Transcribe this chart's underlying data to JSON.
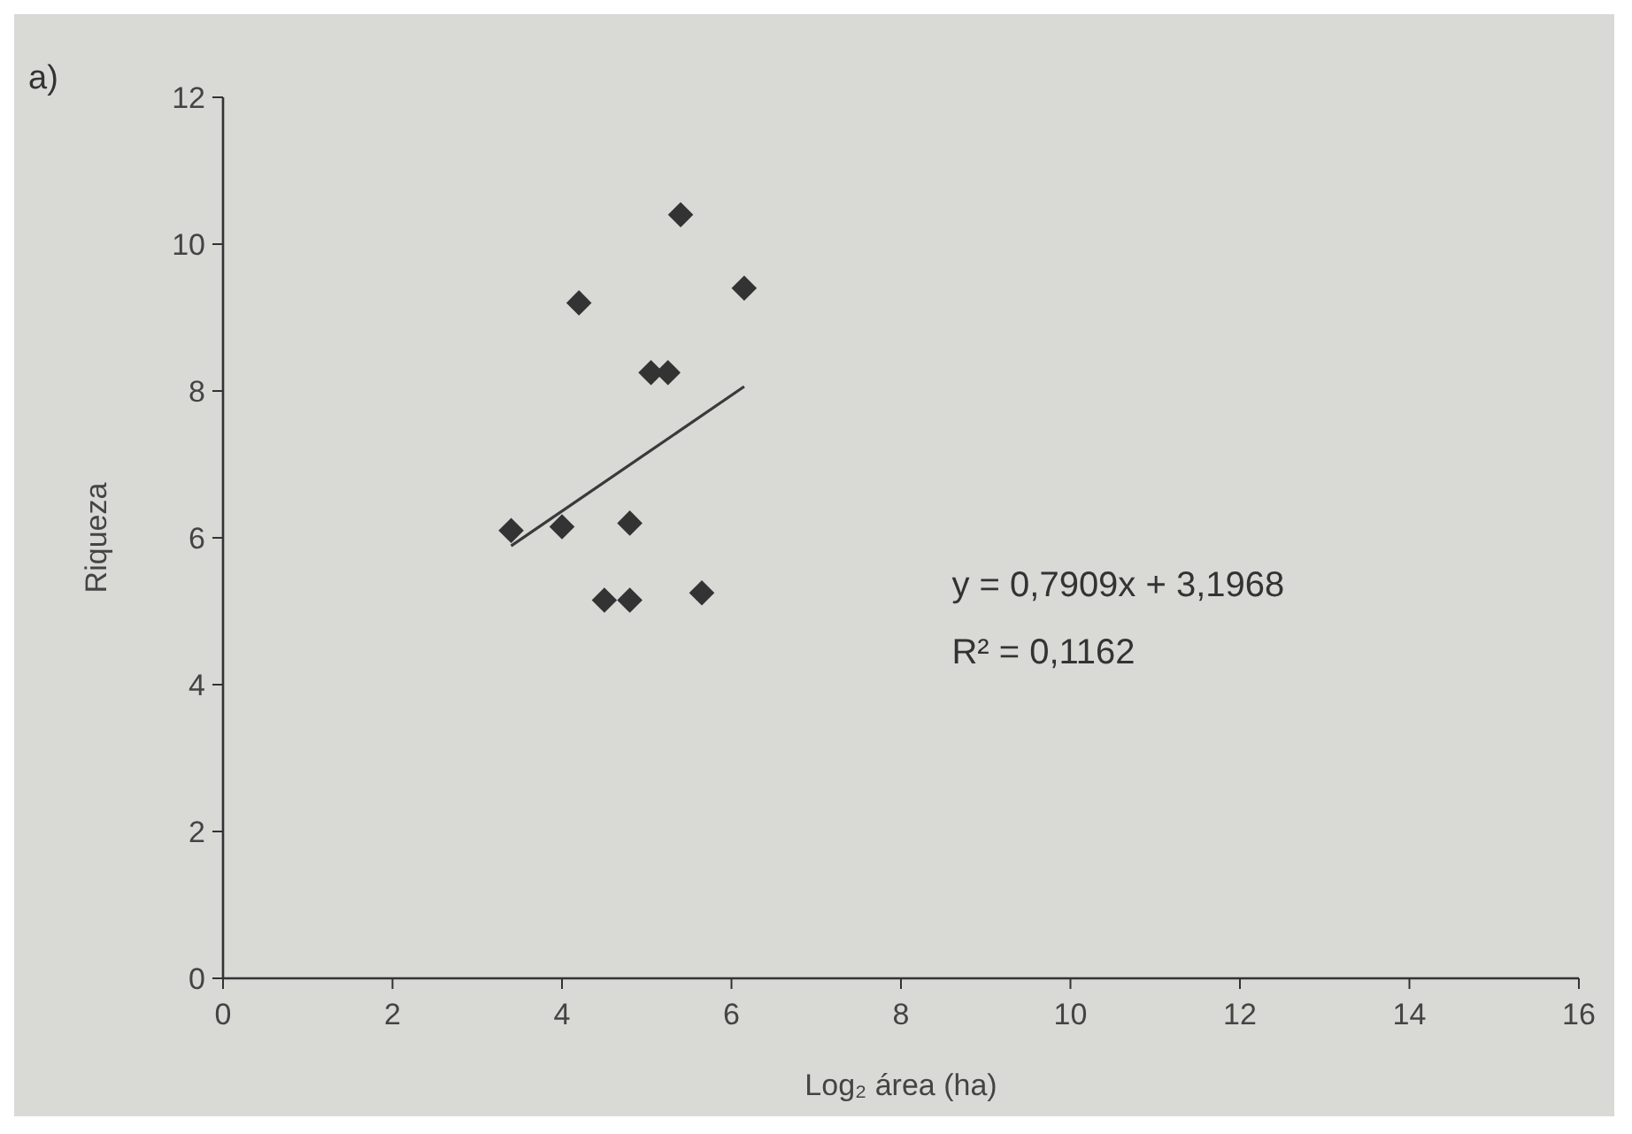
{
  "chart_data": {
    "type": "scatter",
    "xlabel": "Log₂ área (ha)",
    "ylabel": "Riqueza",
    "xlim": [
      0,
      16
    ],
    "ylim": [
      0,
      12
    ],
    "xticks": [
      0,
      2,
      4,
      6,
      8,
      10,
      12,
      14,
      16
    ],
    "yticks": [
      0,
      2,
      4,
      6,
      8,
      10,
      12
    ],
    "annotations": [
      "a)",
      "y = 0,7909x + 3,1968",
      "R² = 0,1162"
    ],
    "series": [
      {
        "marker": "diamond",
        "color": "#333333",
        "x": [
          3.4,
          4.0,
          4.2,
          4.8,
          4.5,
          4.8,
          5.05,
          5.25,
          5.4,
          5.65,
          6.15
        ],
        "values": [
          6.1,
          6.15,
          9.2,
          6.2,
          5.15,
          5.15,
          8.25,
          8.25,
          10.4,
          5.25,
          9.4
        ]
      },
      {
        "type": "line",
        "marker": "none",
        "color": "#3a3a3a",
        "x": [
          3.4,
          6.15
        ],
        "values": [
          5.89,
          8.06
        ]
      }
    ]
  }
}
